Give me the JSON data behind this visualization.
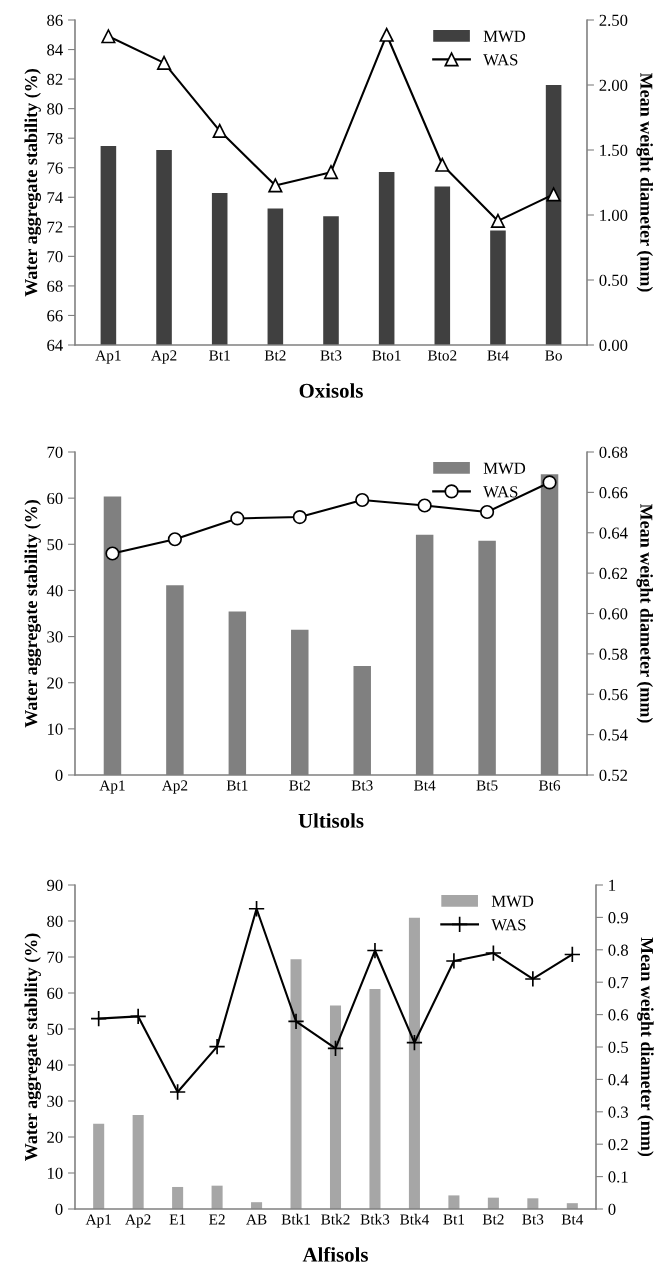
{
  "chart_data": [
    {
      "type": "bar",
      "xlabel": "Oxisols",
      "ylabel": "Water aggregate stability (%)",
      "y2label": "Mean weight diameter (mm)",
      "categories": [
        "Ap1",
        "Ap2",
        "Bt1",
        "Bt2",
        "Bt3",
        "Bto1",
        "Bto2",
        "Bt4",
        "Bo"
      ],
      "series": [
        {
          "name": "MWD",
          "axis": "y2",
          "color": "#404040",
          "values": [
            1.53,
            1.5,
            1.17,
            1.05,
            0.99,
            1.33,
            1.22,
            0.88,
            2.0
          ]
        },
        {
          "name": "WAS",
          "type": "line",
          "axis": "y",
          "color": "#000000",
          "marker": "triangle",
          "values": [
            84.9,
            83.1,
            78.5,
            74.8,
            75.7,
            85.0,
            76.2,
            72.4,
            74.2
          ]
        }
      ],
      "ylim": [
        64,
        86
      ],
      "yticks": [
        64,
        66,
        68,
        70,
        72,
        74,
        76,
        78,
        80,
        82,
        84,
        86
      ],
      "y2lim": [
        0,
        2.5
      ],
      "y2ticks": [
        {
          "value": 0,
          "label": "0.00"
        },
        {
          "value": 0.5,
          "label": "0.50"
        },
        {
          "value": 1,
          "label": "1.00"
        },
        {
          "value": 1.5,
          "label": "1.50"
        },
        {
          "value": 2,
          "label": "2.00"
        },
        {
          "value": 2.5,
          "label": "2.50"
        }
      ],
      "legend": "top right",
      "grid": false
    },
    {
      "type": "bar",
      "xlabel": "Ultisols",
      "ylabel": "Water aggregate stability (%)",
      "y2label": "Mean weight diameter (mm)",
      "categories": [
        "Ap1",
        "Ap2",
        "Bt1",
        "Bt2",
        "Bt3",
        "Bt4",
        "Bt5",
        "Bt6"
      ],
      "series": [
        {
          "name": "MWD",
          "axis": "y2",
          "color": "#808080",
          "values": [
            0.658,
            0.614,
            0.601,
            0.592,
            0.574,
            0.639,
            0.636,
            0.669
          ]
        },
        {
          "name": "WAS",
          "type": "line",
          "axis": "y",
          "color": "#000000",
          "marker": "circle",
          "values": [
            48.0,
            51.1,
            55.6,
            55.9,
            59.6,
            58.4,
            57.0,
            63.4
          ]
        }
      ],
      "ylim": [
        0,
        70
      ],
      "yticks": [
        0,
        10,
        20,
        30,
        40,
        50,
        60,
        70
      ],
      "y2lim": [
        0.52,
        0.68
      ],
      "y2ticks": [
        0.52,
        0.54,
        0.56,
        0.58,
        {
          "value": 0.6,
          "label": "0.60"
        },
        0.62,
        0.64,
        0.66,
        0.68
      ],
      "legend": "top right",
      "grid": false
    },
    {
      "type": "bar",
      "xlabel": "Alfisols",
      "ylabel": "Water aggregate stability (%)",
      "y2label": "Mean weight diameter (mm)",
      "categories": [
        "Ap1",
        "Ap2",
        "E1",
        "E2",
        "AB",
        "Btk1",
        "Btk2",
        "Btk3",
        "Btk4",
        "Bt1",
        "Bt2",
        "Bt3",
        "Bt4"
      ],
      "series": [
        {
          "name": "MWD",
          "axis": "y2",
          "color": "#a6a6a6",
          "values": [
            0.263,
            0.29,
            0.068,
            0.072,
            0.021,
            0.771,
            0.628,
            0.679,
            0.899,
            0.042,
            0.035,
            0.033,
            0.018
          ]
        },
        {
          "name": "WAS",
          "type": "line",
          "axis": "y",
          "color": "#000000",
          "marker": "cross",
          "values": [
            52.9,
            53.5,
            32.5,
            45.1,
            83.4,
            52.1,
            44.6,
            71.8,
            46.2,
            68.9,
            71.1,
            63.9,
            70.7
          ]
        }
      ],
      "ylim": [
        0,
        90
      ],
      "yticks": [
        0,
        10,
        20,
        30,
        40,
        50,
        60,
        70,
        80,
        90
      ],
      "y2lim": [
        0,
        1
      ],
      "y2ticks": [
        0,
        0.1,
        0.2,
        0.3,
        0.4,
        0.5,
        0.6,
        0.7,
        0.8,
        0.9,
        1
      ],
      "legend": "top right",
      "grid": false
    }
  ]
}
